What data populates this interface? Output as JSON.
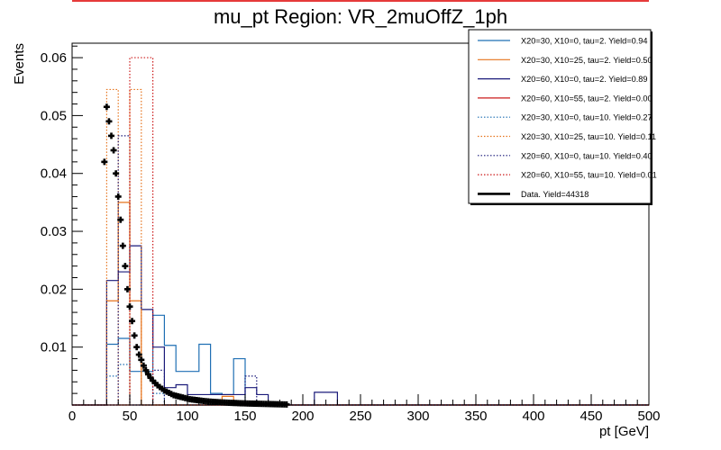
{
  "chart_data": {
    "type": "histogram",
    "title": "mu_pt Region: VR_2muOffZ_1ph",
    "xlabel": "pt [GeV]",
    "ylabel": "Events",
    "xlim": [
      0,
      500
    ],
    "ylim": [
      0,
      0.0625
    ],
    "bin_edges": [
      0,
      10,
      20,
      30,
      40,
      50,
      60,
      70,
      80,
      90,
      100,
      110,
      120,
      130,
      140,
      150,
      160,
      170,
      180,
      190,
      200,
      210,
      220,
      230,
      240,
      250,
      260,
      270,
      280,
      290,
      300,
      310,
      320,
      330,
      340,
      350,
      360,
      370,
      380,
      390,
      400,
      410,
      420,
      430,
      440,
      450,
      460,
      470,
      480,
      490,
      500
    ],
    "x_ticks": [
      0,
      50,
      100,
      150,
      200,
      250,
      300,
      350,
      400,
      450,
      500
    ],
    "y_ticks": [
      0.01,
      0.02,
      0.03,
      0.04,
      0.05,
      0.06
    ],
    "y_tick_labels": [
      "0.01",
      "0.02",
      "0.03",
      "0.04",
      "0.05",
      "0.06"
    ],
    "legend_position": "top-right",
    "series": [
      {
        "name": "X20=30, X10=0, tau=2. Yield=0.94",
        "color": "#1f6fb4",
        "style": "solid",
        "values": [
          0,
          0,
          0,
          0.0105,
          0.0115,
          0.0058,
          0.0058,
          0.0155,
          0.0103,
          0.0058,
          0.0058,
          0.0105,
          0.002,
          0.0018,
          0.008,
          0,
          0,
          0,
          0,
          0,
          0,
          0,
          0,
          0,
          0,
          0,
          0,
          0,
          0,
          0,
          0,
          0,
          0,
          0,
          0,
          0,
          0,
          0,
          0,
          0,
          0,
          0,
          0,
          0,
          0,
          0,
          0,
          0,
          0,
          0
        ]
      },
      {
        "name": "X20=30, X10=25, tau=2. Yield=0.50",
        "color": "#e6731c",
        "style": "solid",
        "values": [
          0,
          0,
          0,
          0.018,
          0.035,
          0.018,
          0,
          0,
          0,
          0,
          0,
          0,
          0,
          0.0015,
          0,
          0,
          0,
          0,
          0,
          0,
          0,
          0,
          0,
          0,
          0,
          0,
          0,
          0,
          0,
          0,
          0,
          0,
          0,
          0,
          0,
          0,
          0,
          0,
          0,
          0,
          0,
          0,
          0,
          0,
          0,
          0,
          0,
          0,
          0,
          0
        ]
      },
      {
        "name": "X20=60, X10=0, tau=2. Yield=0.89",
        "color": "#1a1a7a",
        "style": "solid",
        "values": [
          0,
          0,
          0,
          0.0215,
          0.023,
          0.0275,
          0.0165,
          0.01,
          0.003,
          0.0035,
          0.0018,
          0.0018,
          0.0018,
          0.0018,
          0.0018,
          0.003,
          0.0018,
          0,
          0,
          0,
          0,
          0.0022,
          0.0022,
          0,
          0,
          0,
          0,
          0,
          0,
          0,
          0,
          0,
          0,
          0,
          0,
          0,
          0,
          0,
          0,
          0,
          0,
          0,
          0,
          0,
          0,
          0,
          0,
          0,
          0,
          0
        ]
      },
      {
        "name": "X20=60, X10=55, tau=2. Yield=0.00",
        "color": "#cc1a1a",
        "style": "solid",
        "values": [
          0,
          0,
          0,
          0,
          0,
          0,
          0,
          0,
          0,
          0,
          0,
          0,
          0,
          0,
          0,
          0,
          0,
          0,
          0,
          0,
          0,
          0,
          0,
          0,
          0,
          0,
          0,
          0,
          0,
          0,
          0,
          0,
          0,
          0,
          0,
          0,
          0,
          0,
          0,
          0,
          0,
          0,
          0,
          0,
          0,
          0,
          0,
          0,
          0,
          0
        ]
      },
      {
        "name": "X20=30, X10=0, tau=10. Yield=0.27",
        "color": "#1f6fb4",
        "style": "dotted",
        "values": [
          0,
          0,
          0,
          0.005,
          0.007,
          0,
          0,
          0.002,
          0,
          0,
          0,
          0,
          0,
          0,
          0,
          0,
          0,
          0,
          0,
          0,
          0,
          0,
          0,
          0,
          0,
          0,
          0,
          0,
          0,
          0,
          0,
          0,
          0,
          0,
          0,
          0,
          0,
          0,
          0,
          0,
          0,
          0,
          0,
          0,
          0,
          0,
          0,
          0,
          0,
          0
        ]
      },
      {
        "name": "X20=30, X10=25, tau=10. Yield=0.11",
        "color": "#e6731c",
        "style": "dotted",
        "values": [
          0,
          0,
          0,
          0.0545,
          0,
          0.0545,
          0,
          0,
          0,
          0,
          0,
          0,
          0,
          0,
          0,
          0,
          0,
          0,
          0,
          0,
          0,
          0,
          0,
          0,
          0,
          0,
          0,
          0,
          0,
          0,
          0,
          0,
          0,
          0,
          0,
          0,
          0,
          0,
          0,
          0,
          0,
          0,
          0,
          0,
          0,
          0,
          0,
          0,
          0,
          0
        ]
      },
      {
        "name": "X20=60, X10=0, tau=10. Yield=0.40",
        "color": "#1a1a7a",
        "style": "dotted",
        "values": [
          0,
          0,
          0,
          0,
          0.0465,
          0,
          0,
          0.006,
          0,
          0,
          0,
          0,
          0,
          0,
          0,
          0.005,
          0,
          0,
          0,
          0,
          0,
          0,
          0,
          0,
          0,
          0,
          0,
          0,
          0,
          0,
          0,
          0,
          0,
          0,
          0,
          0,
          0,
          0,
          0,
          0,
          0,
          0,
          0,
          0,
          0,
          0,
          0,
          0,
          0,
          0
        ]
      },
      {
        "name": "X20=60, X10=55, tau=10. Yield=0.01",
        "color": "#cc1a1a",
        "style": "dotted",
        "values": [
          0,
          0,
          0,
          0,
          0,
          0.06,
          0.06,
          0,
          0,
          0,
          0,
          0,
          0,
          0,
          0,
          0,
          0,
          0,
          0,
          0,
          0,
          0,
          0,
          0,
          0,
          0,
          0,
          0,
          0,
          0,
          0,
          0,
          0,
          0,
          0,
          0,
          0,
          0,
          0,
          0,
          0,
          0,
          0,
          0,
          0,
          0,
          0,
          0,
          0,
          0
        ]
      }
    ],
    "data_points": {
      "name": "Data. Yield=44318",
      "color": "#000000",
      "x": [
        28,
        30,
        32,
        34,
        36,
        38,
        40,
        42,
        44,
        46,
        48,
        50,
        52,
        54,
        56,
        58,
        60,
        62,
        64,
        66,
        68,
        70,
        72,
        74,
        76,
        78,
        80,
        82,
        84,
        86,
        88,
        90,
        92,
        94,
        96,
        98,
        100,
        102,
        104,
        106,
        108,
        110,
        112,
        114,
        116,
        118,
        120,
        122,
        124,
        126,
        128,
        130,
        132,
        134,
        136,
        138,
        140,
        142,
        144,
        146,
        148,
        150,
        152,
        154,
        156,
        158,
        160,
        162,
        164,
        166,
        168,
        170,
        172,
        174,
        176,
        178,
        180,
        182,
        184,
        186
      ],
      "y": [
        0.042,
        0.0515,
        0.049,
        0.0465,
        0.044,
        0.04,
        0.036,
        0.032,
        0.0275,
        0.024,
        0.02,
        0.017,
        0.0145,
        0.012,
        0.01,
        0.0087,
        0.0078,
        0.0068,
        0.006,
        0.0053,
        0.0047,
        0.0042,
        0.0038,
        0.0034,
        0.0031,
        0.0028,
        0.0025,
        0.0023,
        0.0021,
        0.0019,
        0.0017,
        0.0016,
        0.0015,
        0.0014,
        0.0013,
        0.0012,
        0.0011,
        0.001,
        0.00095,
        0.0009,
        0.00085,
        0.0008,
        0.00075,
        0.0007,
        0.00066,
        0.00062,
        0.00058,
        0.00055,
        0.00052,
        0.0005,
        0.00047,
        0.00045,
        0.00043,
        0.00041,
        0.00039,
        0.00037,
        0.00035,
        0.00034,
        0.00032,
        0.0003,
        0.00029,
        0.00028,
        0.00026,
        0.00025,
        0.00024,
        0.00023,
        0.00022,
        0.00021,
        0.0002,
        0.00019,
        0.00018,
        0.00017,
        0.00016,
        0.00015,
        0.00014,
        0.00013,
        0.00012,
        0.00011,
        0.0001,
        9e-05
      ]
    }
  }
}
